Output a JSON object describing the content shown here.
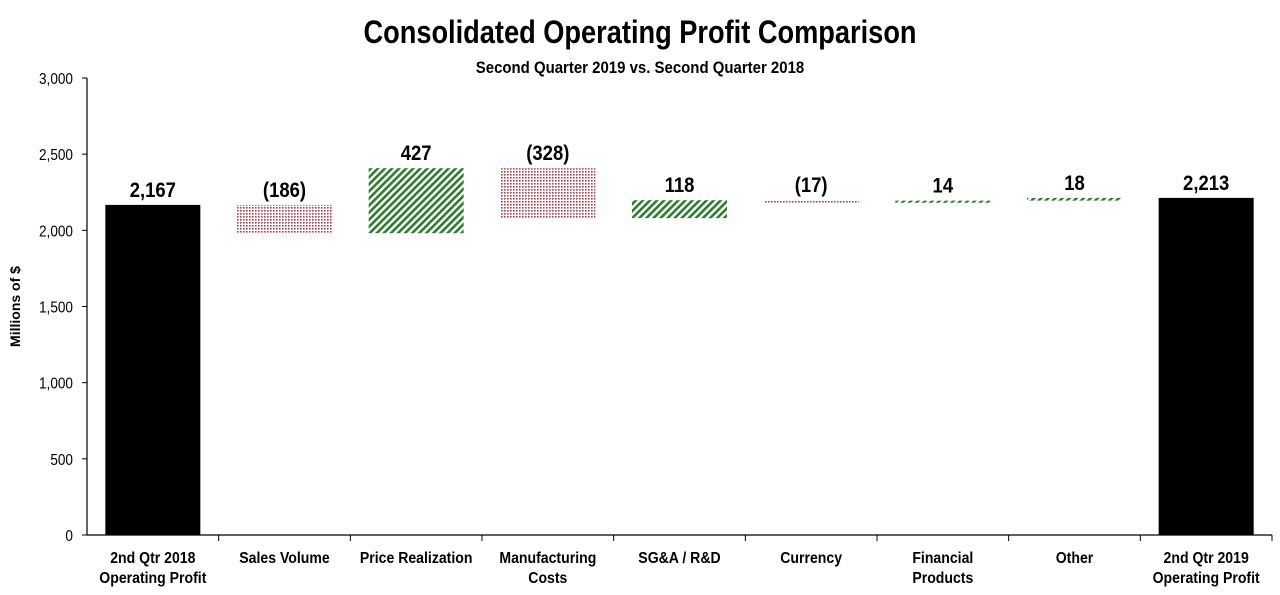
{
  "chart_data": {
    "type": "bar",
    "subtype": "waterfall",
    "title": "Consolidated Operating Profit Comparison",
    "subtitle": "Second Quarter 2019 vs. Second Quarter 2018",
    "ylabel": "Millions of $",
    "xlabel": "",
    "ylim": [
      0,
      3000
    ],
    "yticks": [
      0,
      500,
      1000,
      1500,
      2000,
      2500,
      3000
    ],
    "ytick_labels": [
      "0",
      "500",
      "1,000",
      "1,500",
      "2,000",
      "2,500",
      "3,000"
    ],
    "grid": false,
    "categories": [
      [
        "2nd Qtr 2018",
        "Operating Profit"
      ],
      [
        "Sales Volume"
      ],
      [
        "Price Realization"
      ],
      [
        "Manufacturing",
        "Costs"
      ],
      [
        "SG&A / R&D"
      ],
      [
        "Currency"
      ],
      [
        "Financial",
        "Products"
      ],
      [
        "Other"
      ],
      [
        "2nd Qtr 2019",
        "Operating Profit"
      ]
    ],
    "values": [
      2167,
      -186,
      427,
      -328,
      118,
      -17,
      14,
      18,
      2213
    ],
    "kinds": [
      "total",
      "delta",
      "delta",
      "delta",
      "delta",
      "delta",
      "delta",
      "delta",
      "total"
    ],
    "data_labels": [
      "2,167",
      "(186)",
      "427",
      "(328)",
      "118",
      "(17)",
      "14",
      "18",
      "2,213"
    ],
    "colors": {
      "total": "#000000",
      "increase": "#2e7d2e",
      "decrease": "#b03a48"
    }
  }
}
